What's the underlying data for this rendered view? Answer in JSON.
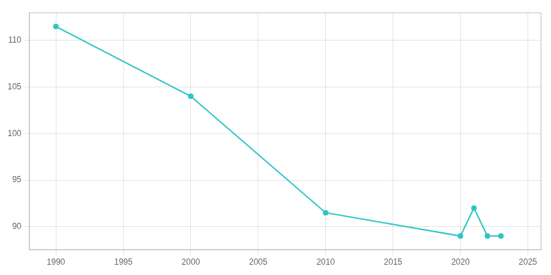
{
  "chart_data": {
    "type": "line",
    "x": [
      1990,
      2000,
      2010,
      2020,
      2021,
      2022,
      2023
    ],
    "values": [
      111.5,
      104,
      91.5,
      89,
      92,
      89,
      89
    ],
    "color": "#2ec4c4",
    "marker": "circle",
    "xlim": [
      1988,
      2026
    ],
    "ylim": [
      87.5,
      113
    ],
    "xticks": [
      1990,
      1995,
      2000,
      2005,
      2010,
      2015,
      2020,
      2025
    ],
    "yticks": [
      90,
      95,
      100,
      105,
      110
    ],
    "grid": true
  }
}
